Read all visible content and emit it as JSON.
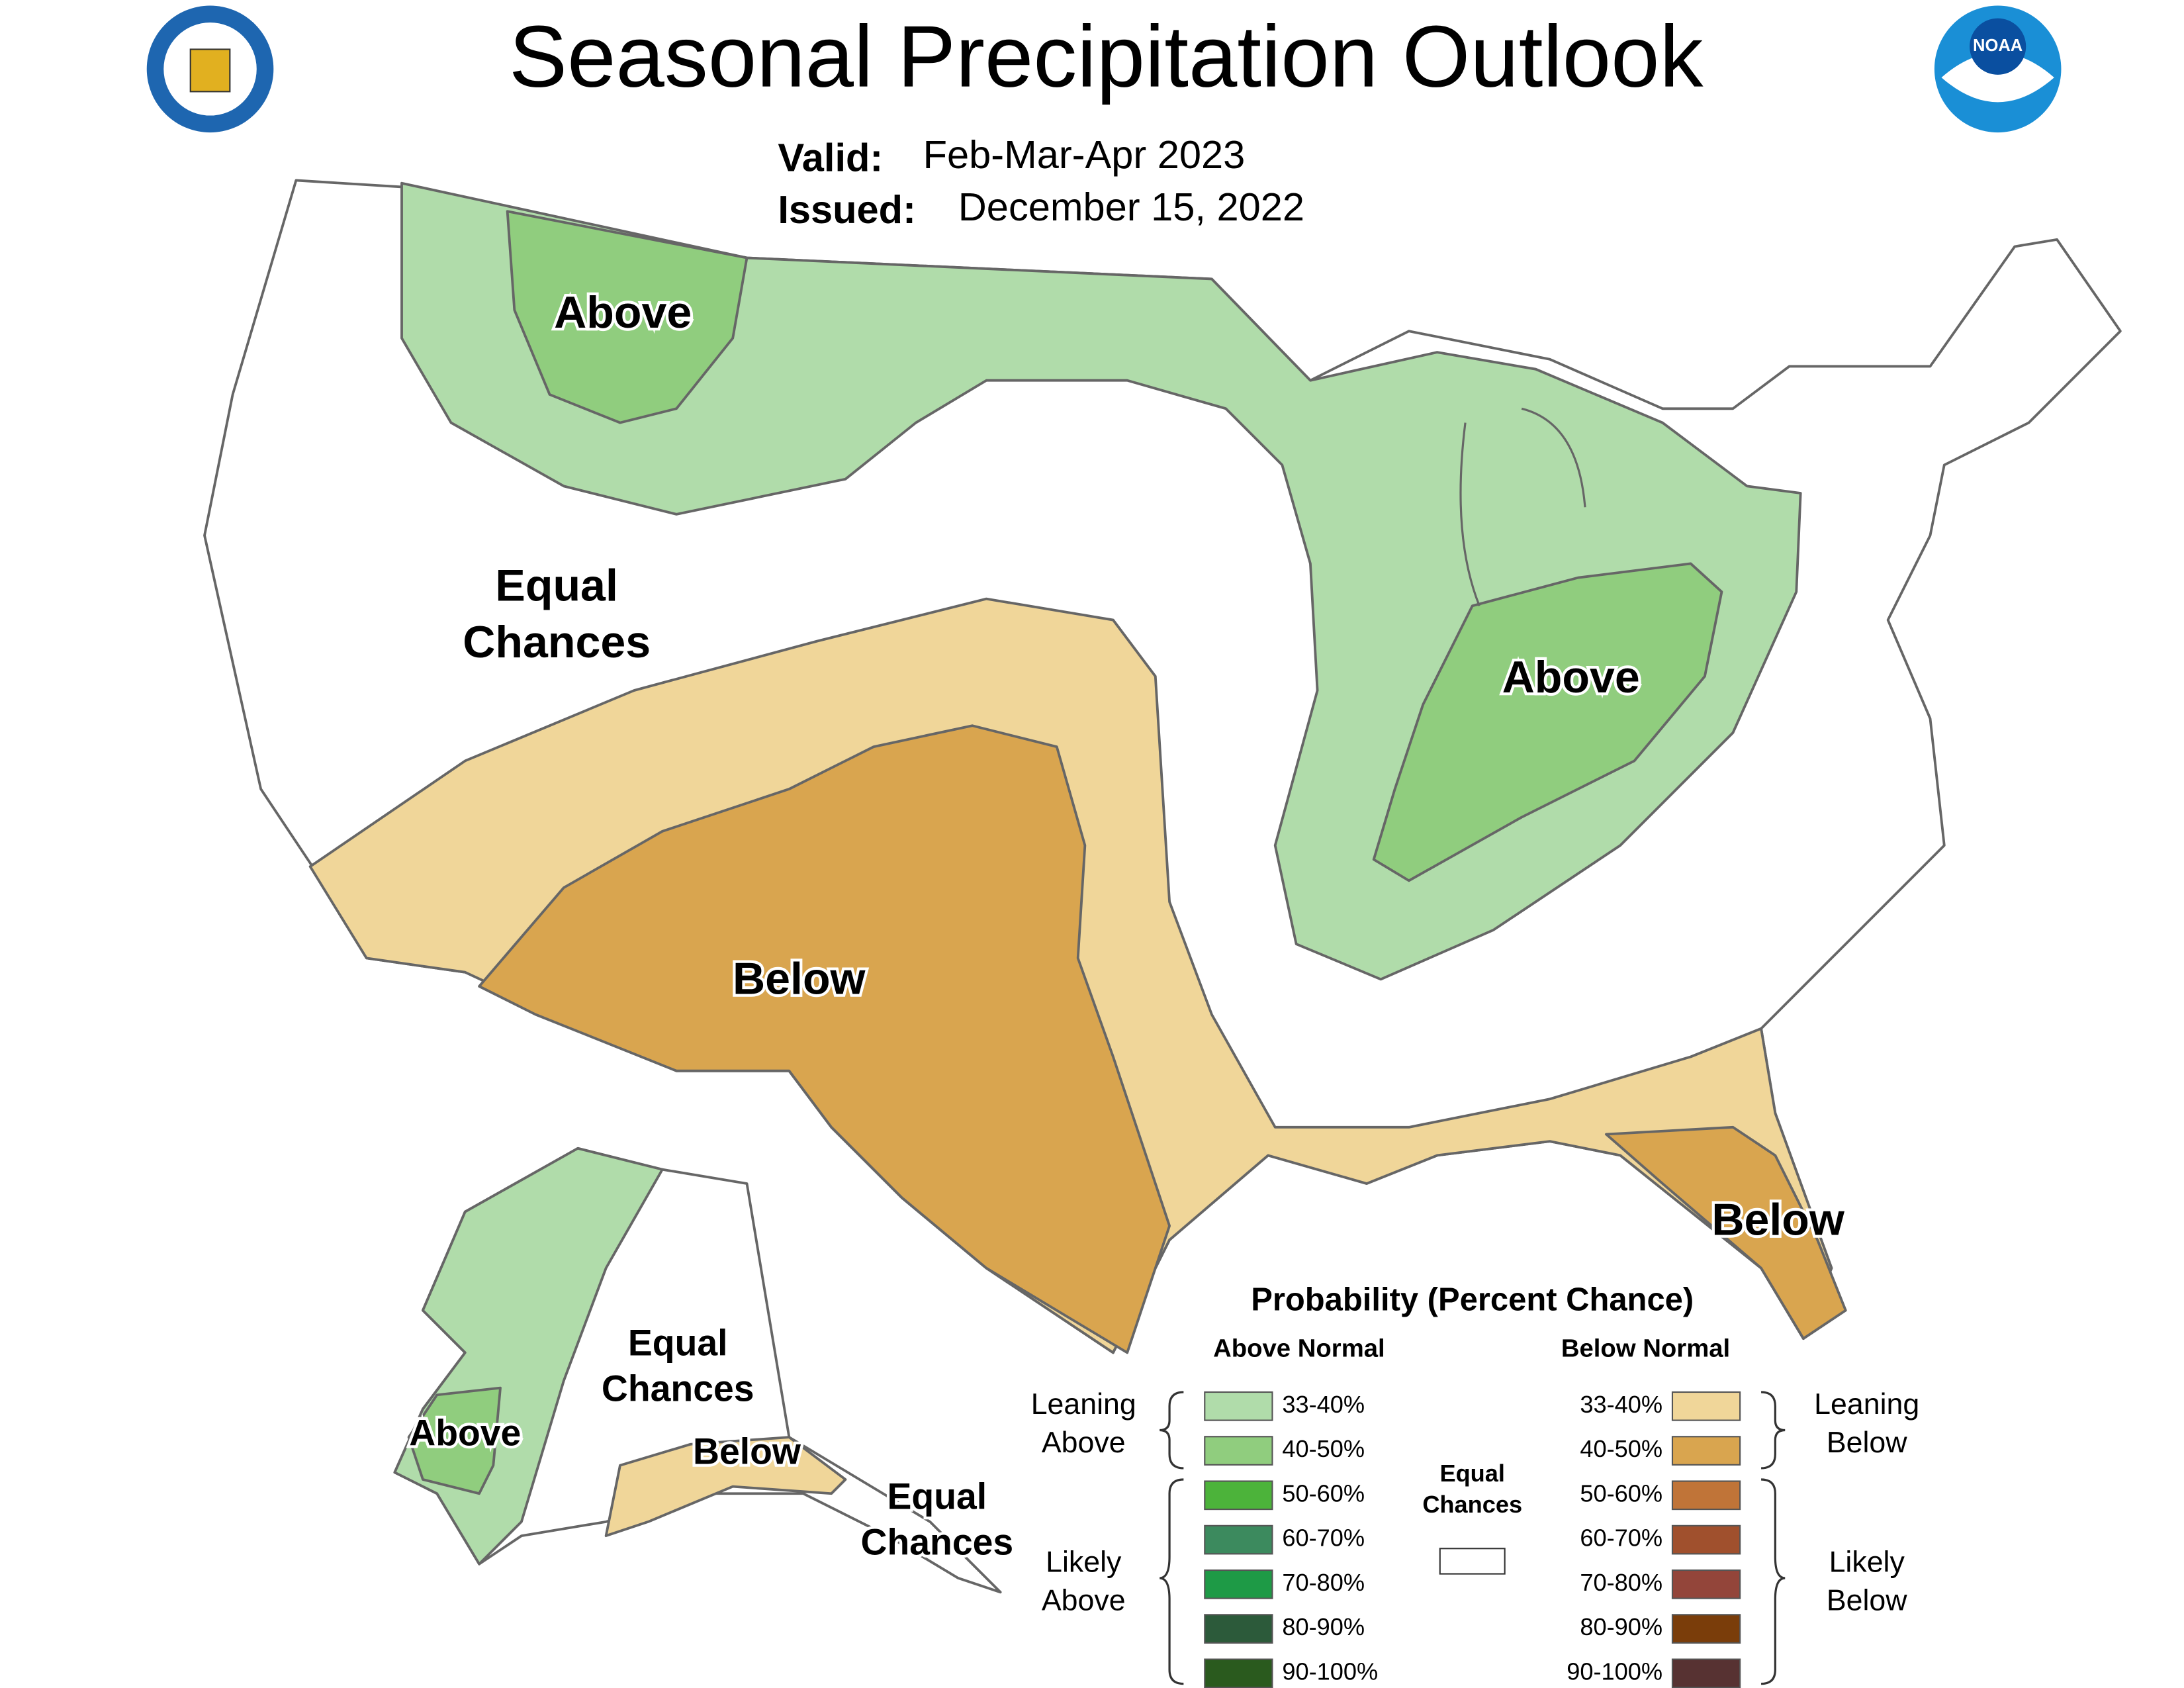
{
  "header": {
    "title": "Seasonal Precipitation Outlook",
    "valid_label": "Valid:",
    "valid": "Feb-Mar-Apr 2023",
    "issued_label": "Issued:",
    "issued": "December 15, 2022"
  },
  "map_labels": {
    "montana": [
      "Above"
    ],
    "west": [
      "Equal",
      "Chances"
    ],
    "ohio": [
      "Above"
    ],
    "southwest": [
      "Below"
    ],
    "florida": [
      "Below"
    ],
    "alaska_west": [
      "Above"
    ],
    "alaska_center": [
      "Equal",
      "Chances"
    ],
    "alaska_south": [
      "Below"
    ],
    "alaska_east": [
      "Equal",
      "Chances"
    ]
  },
  "legend": {
    "title": "Probability (Percent Chance)",
    "above_header": "Above Normal",
    "below_header": "Below Normal",
    "above_rows": [
      {
        "label": "33-40%",
        "color": "#b0dcaa"
      },
      {
        "label": "40-50%",
        "color": "#90cd7e"
      },
      {
        "label": "50-60%",
        "color": "#4cb33a"
      },
      {
        "label": "60-70%",
        "color": "#3c8a5e"
      },
      {
        "label": "70-80%",
        "color": "#1e9a46"
      },
      {
        "label": "80-90%",
        "color": "#2c5a3a"
      },
      {
        "label": "90-100%",
        "color": "#2a5a1e"
      }
    ],
    "below_rows": [
      {
        "label": "33-40%",
        "color": "#f0d699"
      },
      {
        "label": "40-50%",
        "color": "#d9a54f"
      },
      {
        "label": "50-60%",
        "color": "#c07438"
      },
      {
        "label": "60-70%",
        "color": "#a0502d"
      },
      {
        "label": "70-80%",
        "color": "#93453a"
      },
      {
        "label": "80-90%",
        "color": "#7a3d0a"
      },
      {
        "label": "90-100%",
        "color": "#573232"
      }
    ],
    "leaning_above": [
      "Leaning",
      "Above"
    ],
    "likely_above": [
      "Likely",
      "Above"
    ],
    "leaning_below": [
      "Leaning",
      "Below"
    ],
    "likely_below": [
      "Likely",
      "Below"
    ],
    "equal_chances": [
      "Equal",
      "Chances"
    ]
  }
}
